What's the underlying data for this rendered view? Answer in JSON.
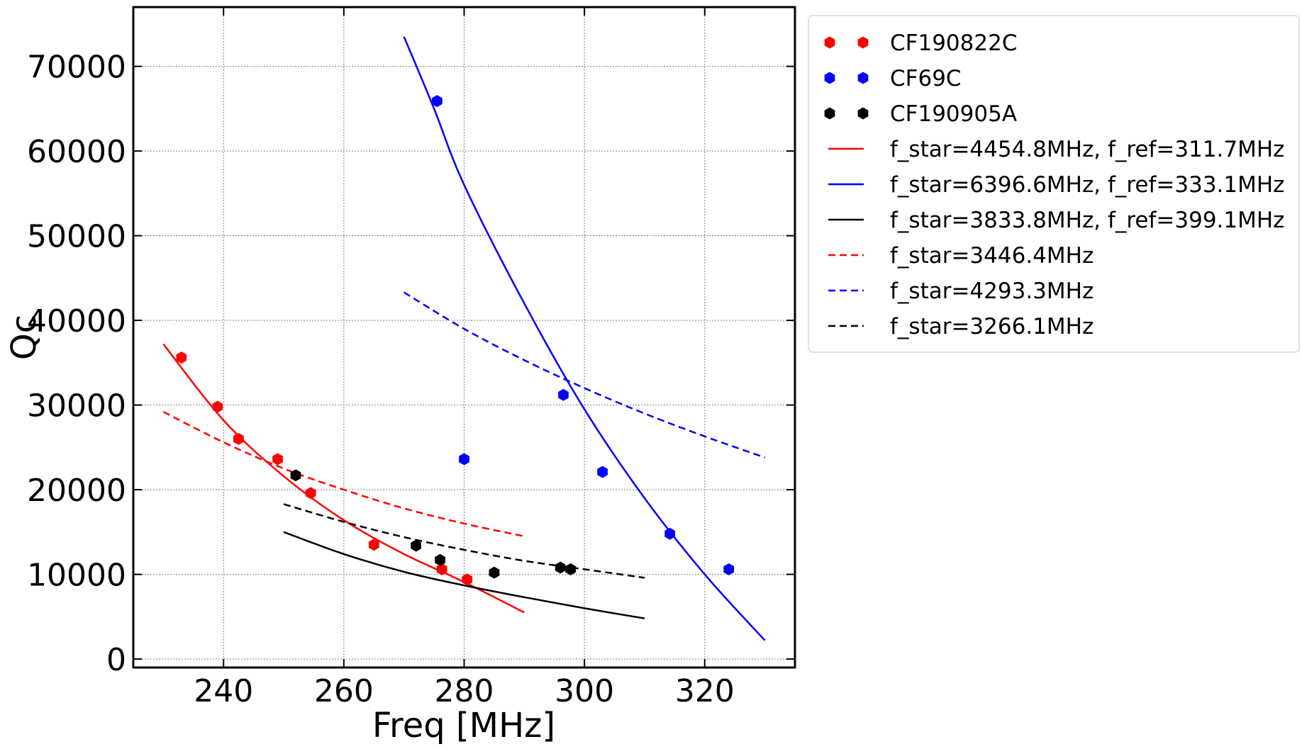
{
  "chart_data": {
    "type": "scatter",
    "xlabel": "Freq [MHz]",
    "ylabel": "Qc",
    "xlim": [
      225,
      335
    ],
    "ylim": [
      -1000,
      77000
    ],
    "xticks": [
      240,
      260,
      280,
      300,
      320
    ],
    "yticks": [
      0,
      10000,
      20000,
      30000,
      40000,
      50000,
      60000,
      70000
    ],
    "grid": true,
    "legend_position": "outside-right",
    "series": [
      {
        "name": "CF190822C",
        "kind": "markers",
        "color": "#ff0000",
        "points": [
          [
            233,
            35600
          ],
          [
            239,
            29800
          ],
          [
            242.5,
            26000
          ],
          [
            249,
            23600
          ],
          [
            254.5,
            19600
          ],
          [
            265,
            13500
          ],
          [
            276.3,
            10600
          ],
          [
            280.5,
            9400
          ]
        ]
      },
      {
        "name": "CF69C",
        "kind": "markers",
        "color": "#0000ff",
        "points": [
          [
            275.5,
            65900
          ],
          [
            280,
            23600
          ],
          [
            296.5,
            31200
          ],
          [
            303,
            22100
          ],
          [
            314.2,
            14800
          ],
          [
            324,
            10600
          ]
        ]
      },
      {
        "name": "CF190905A",
        "kind": "markers",
        "color": "#000000",
        "points": [
          [
            252,
            21700
          ],
          [
            272,
            13400
          ],
          [
            276,
            11700
          ],
          [
            285,
            10200
          ],
          [
            296,
            10800
          ],
          [
            297.7,
            10600
          ]
        ]
      },
      {
        "name": "f_star=4454.8MHz, f_ref=311.7MHz",
        "kind": "line",
        "style": "solid",
        "color": "#ff0000",
        "points": [
          [
            230,
            37200
          ],
          [
            240,
            28200
          ],
          [
            250,
            21600
          ],
          [
            260,
            16400
          ],
          [
            270,
            12400
          ],
          [
            280,
            9100
          ],
          [
            290,
            5500
          ]
        ]
      },
      {
        "name": "f_star=6396.6MHz, f_ref=333.1MHz",
        "kind": "line",
        "style": "solid",
        "color": "#0000ff",
        "points": [
          [
            270,
            73500
          ],
          [
            275,
            65000
          ],
          [
            280,
            56000
          ],
          [
            290,
            42000
          ],
          [
            300,
            29500
          ],
          [
            310,
            19000
          ],
          [
            320,
            10000
          ],
          [
            330,
            2200
          ]
        ]
      },
      {
        "name": "f_star=3833.8MHz, f_ref=399.1MHz",
        "kind": "line",
        "style": "solid",
        "color": "#000000",
        "points": [
          [
            250,
            15000
          ],
          [
            260,
            12400
          ],
          [
            270,
            10300
          ],
          [
            280,
            8700
          ],
          [
            290,
            7300
          ],
          [
            300,
            6000
          ],
          [
            310,
            4800
          ]
        ]
      },
      {
        "name": "f_star=3446.4MHz",
        "kind": "line",
        "style": "dashed",
        "color": "#ff0000",
        "points": [
          [
            230,
            29200
          ],
          [
            240,
            25600
          ],
          [
            250,
            22500
          ],
          [
            260,
            20000
          ],
          [
            270,
            17800
          ],
          [
            280,
            16000
          ],
          [
            290,
            14500
          ]
        ]
      },
      {
        "name": "f_star=4293.3MHz",
        "kind": "line",
        "style": "dashed",
        "color": "#0000ff",
        "points": [
          [
            270,
            43300
          ],
          [
            280,
            39000
          ],
          [
            290,
            35300
          ],
          [
            300,
            32000
          ],
          [
            310,
            29000
          ],
          [
            320,
            26300
          ],
          [
            330,
            23800
          ]
        ]
      },
      {
        "name": "f_star=3266.1MHz",
        "kind": "line",
        "style": "dashed",
        "color": "#000000",
        "points": [
          [
            250,
            18300
          ],
          [
            260,
            16200
          ],
          [
            270,
            14400
          ],
          [
            280,
            12900
          ],
          [
            290,
            11600
          ],
          [
            300,
            10600
          ],
          [
            310,
            9600
          ]
        ]
      }
    ]
  }
}
